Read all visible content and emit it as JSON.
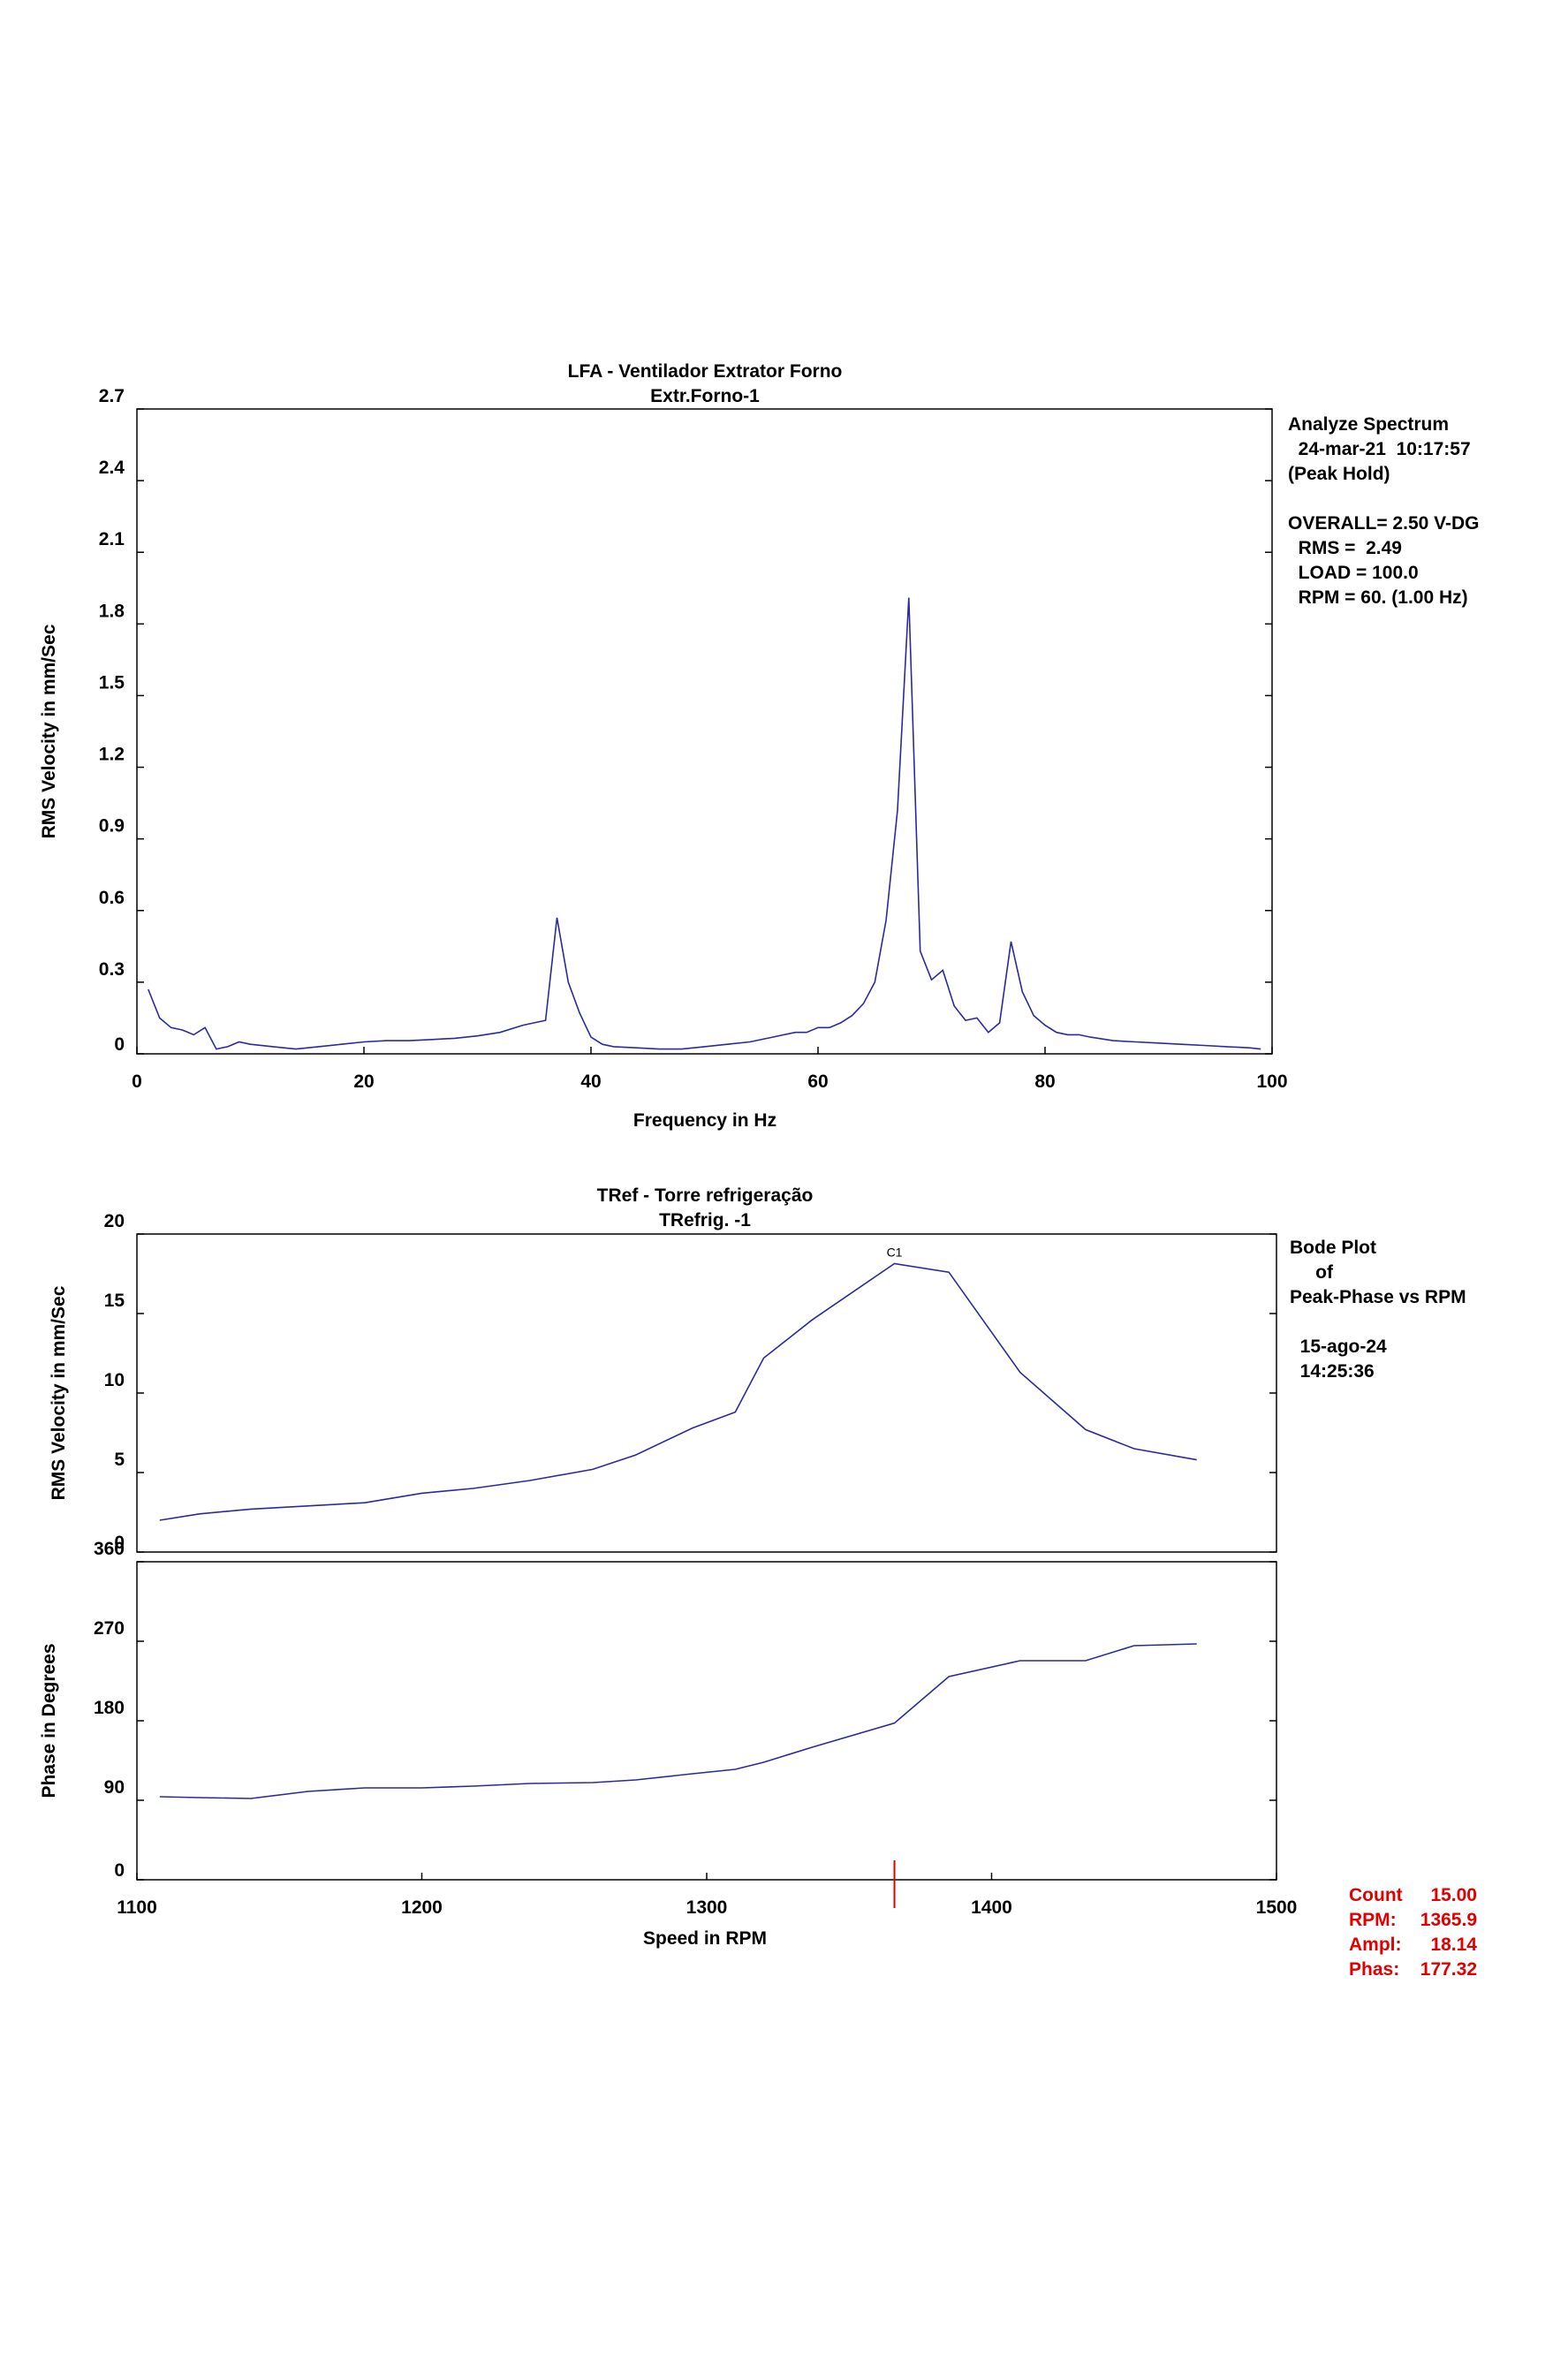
{
  "colors": {
    "trace": "#2a2a9e",
    "cursor": "#e00000",
    "axis": "#000000"
  },
  "spectrum": {
    "title": "LFA  - Ventilador Extrator Forno",
    "subtitle": "Extr.Forno-1",
    "info": [
      "Analyze Spectrum",
      "  24-mar-21  10:17:57",
      "(Peak Hold)",
      "",
      "OVERALL= 2.50 V-DG",
      "  RMS =  2.49",
      "  LOAD = 100.0",
      "  RPM = 60. (1.00 Hz)"
    ]
  },
  "bode": {
    "title": "TRef - Torre refrigeração",
    "subtitle": "TRefrig.  -1",
    "info": [
      "Bode Plot",
      "     of",
      "Peak-Phase vs RPM",
      "",
      "  15-ago-24",
      "  14:25:36"
    ],
    "cursor_label": "C1",
    "readout": [
      {
        "label": "Count",
        "value": "15.00"
      },
      {
        "label": "RPM:",
        "value": "1365.9"
      },
      {
        "label": "Ampl:",
        "value": "18.14"
      },
      {
        "label": "Phas:",
        "value": "177.32"
      }
    ]
  },
  "chart_data": [
    {
      "type": "line",
      "title": "LFA  - Ventilador Extrator Forno",
      "subtitle": "Extr.Forno-1",
      "xlabel": "Frequency in Hz",
      "ylabel": "RMS Velocity in mm/Sec",
      "xlim": [
        0,
        100
      ],
      "ylim": [
        0,
        2.7
      ],
      "xticks": [
        "0",
        "20",
        "40",
        "60",
        "80",
        "100"
      ],
      "yticks": [
        "0",
        "0.3",
        "0.6",
        "0.9",
        "1.2",
        "1.5",
        "1.8",
        "2.1",
        "2.4",
        "2.7"
      ],
      "x": [
        1,
        2,
        3,
        4,
        5,
        6,
        7,
        8,
        9,
        10,
        12,
        14,
        16,
        18,
        20,
        22,
        24,
        26,
        28,
        30,
        32,
        34,
        35,
        36,
        37,
        38,
        39,
        40,
        41,
        42,
        44,
        46,
        48,
        50,
        52,
        54,
        56,
        58,
        59,
        60,
        61,
        62,
        63,
        64,
        65,
        66,
        67,
        68,
        69,
        70,
        71,
        72,
        73,
        74,
        75,
        76,
        77,
        78,
        79,
        80,
        81,
        82,
        83,
        84,
        86,
        88,
        90,
        92,
        94,
        96,
        98,
        99
      ],
      "y": [
        0.27,
        0.15,
        0.11,
        0.1,
        0.08,
        0.11,
        0.02,
        0.03,
        0.05,
        0.04,
        0.03,
        0.02,
        0.03,
        0.04,
        0.05,
        0.055,
        0.055,
        0.06,
        0.065,
        0.075,
        0.09,
        0.12,
        0.13,
        0.14,
        0.57,
        0.3,
        0.17,
        0.07,
        0.04,
        0.03,
        0.025,
        0.02,
        0.02,
        0.03,
        0.04,
        0.05,
        0.07,
        0.09,
        0.09,
        0.11,
        0.11,
        0.13,
        0.16,
        0.21,
        0.3,
        0.56,
        1.02,
        1.91,
        0.43,
        0.31,
        0.35,
        0.2,
        0.14,
        0.15,
        0.09,
        0.13,
        0.47,
        0.26,
        0.16,
        0.12,
        0.09,
        0.08,
        0.08,
        0.07,
        0.055,
        0.05,
        0.045,
        0.04,
        0.035,
        0.03,
        0.025,
        0.02
      ]
    },
    {
      "type": "line",
      "title": "TRef - Torre refrigeração",
      "subtitle": "TRefrig.  -1",
      "xlabel": "Speed in RPM",
      "ylabel": "RMS Velocity in mm/Sec",
      "xlim": [
        1100,
        1500
      ],
      "ylim": [
        0,
        20
      ],
      "xticks": [
        "1100",
        "1200",
        "1300",
        "1400",
        "1500"
      ],
      "yticks": [
        "0",
        "5",
        "10",
        "15",
        "20"
      ],
      "x": [
        1108,
        1122,
        1140,
        1160,
        1180,
        1200,
        1218,
        1238,
        1260,
        1275,
        1295,
        1310,
        1320,
        1337,
        1365.9,
        1385,
        1410,
        1433,
        1450,
        1472
      ],
      "y": [
        2.0,
        2.4,
        2.7,
        2.9,
        3.1,
        3.7,
        4.0,
        4.5,
        5.2,
        6.1,
        7.8,
        8.8,
        12.2,
        14.6,
        18.14,
        17.6,
        11.3,
        7.7,
        6.5,
        5.8
      ]
    },
    {
      "type": "line",
      "xlabel": "Speed in RPM",
      "ylabel": "Phase in Degrees",
      "xlim": [
        1100,
        1500
      ],
      "ylim": [
        0,
        360
      ],
      "xticks": [
        "1100",
        "1200",
        "1300",
        "1400",
        "1500"
      ],
      "yticks": [
        "0",
        "90",
        "180",
        "270",
        "360"
      ],
      "x": [
        1108,
        1122,
        1140,
        1160,
        1180,
        1200,
        1218,
        1238,
        1260,
        1275,
        1295,
        1310,
        1320,
        1337,
        1365.9,
        1385,
        1410,
        1433,
        1450,
        1472
      ],
      "y": [
        94,
        93,
        92,
        100,
        104,
        104,
        106,
        109,
        110,
        113,
        120,
        125,
        133,
        150,
        177.32,
        230,
        248,
        248,
        265,
        267
      ]
    }
  ]
}
